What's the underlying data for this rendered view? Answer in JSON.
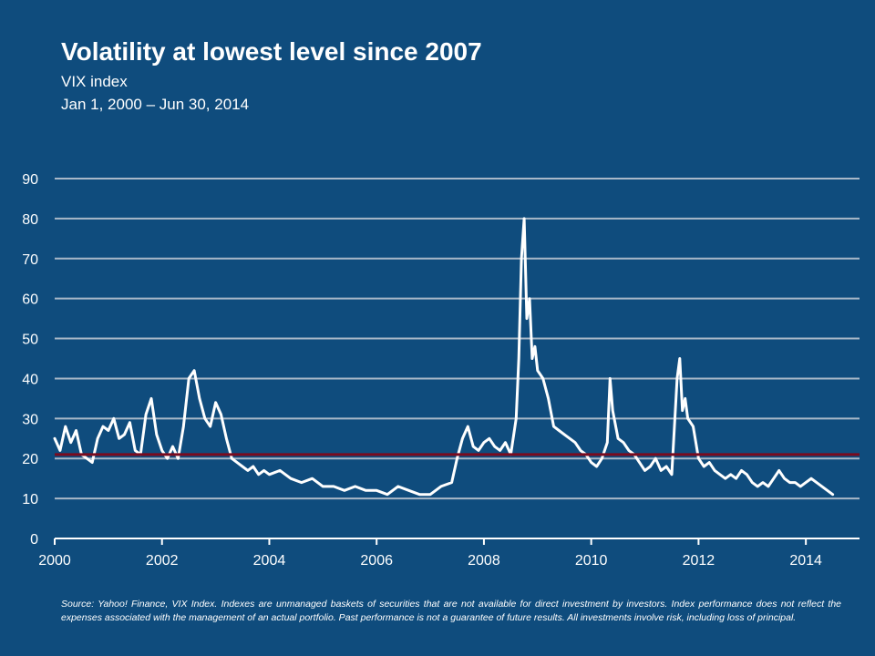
{
  "title": "Volatility at lowest level since 2007",
  "subtitle": "VIX index",
  "date_range": "Jan 1, 2000 – Jun 30, 2014",
  "footnote": "Source: Yahoo! Finance, VIX Index. Indexes are unmanaged baskets of securities that are not available for direct investment by investors. Index performance does not reflect the expenses associated with the management of an actual portfolio. Past performance is not a guarantee of future results. All investments involve risk, including loss of principal.",
  "colors": {
    "background": "#0f4c7d",
    "line": "#ffffff",
    "average_line": "#7a0b1f",
    "grid": "#a9b8c8"
  },
  "chart_data": {
    "type": "line",
    "title": "Volatility at lowest level since 2007",
    "xlabel": "",
    "ylabel": "",
    "xlim": [
      2000,
      2015
    ],
    "ylim": [
      0,
      90
    ],
    "x_ticks": [
      2000,
      2002,
      2004,
      2006,
      2008,
      2010,
      2012,
      2014
    ],
    "x_tick_labels": [
      "2000",
      "2002",
      "2004",
      "2006",
      "2008",
      "2010",
      "2012",
      "2014"
    ],
    "y_ticks": [
      0,
      10,
      20,
      30,
      40,
      50,
      60,
      70,
      80,
      90
    ],
    "y_tick_labels": [
      "0",
      "10",
      "20",
      "30",
      "40",
      "50",
      "60",
      "70",
      "80",
      "90"
    ],
    "grid": "horizontal",
    "legend": "none",
    "series": [
      {
        "x": [
          2000.0,
          2000.1,
          2000.2,
          2000.3,
          2000.4,
          2000.5,
          2000.6,
          2000.7,
          2000.8,
          2000.9,
          2001.0,
          2001.1,
          2001.2,
          2001.3,
          2001.4,
          2001.5,
          2001.6,
          2001.7,
          2001.8,
          2001.9,
          2002.0,
          2002.1,
          2002.2,
          2002.3,
          2002.4,
          2002.5,
          2002.6,
          2002.7,
          2002.8,
          2002.9,
          2003.0,
          2003.1,
          2003.2,
          2003.3,
          2003.4,
          2003.5,
          2003.6,
          2003.7,
          2003.8,
          2003.9,
          2004.0,
          2004.2,
          2004.4,
          2004.6,
          2004.8,
          2005.0,
          2005.2,
          2005.4,
          2005.6,
          2005.8,
          2006.0,
          2006.2,
          2006.4,
          2006.6,
          2006.8,
          2007.0,
          2007.2,
          2007.4,
          2007.5,
          2007.6,
          2007.7,
          2007.8,
          2007.9,
          2008.0,
          2008.1,
          2008.2,
          2008.3,
          2008.4,
          2008.5,
          2008.6,
          2008.65,
          2008.7,
          2008.75,
          2008.8,
          2008.85,
          2008.9,
          2008.95,
          2009.0,
          2009.1,
          2009.2,
          2009.3,
          2009.4,
          2009.5,
          2009.6,
          2009.7,
          2009.8,
          2009.9,
          2010.0,
          2010.1,
          2010.2,
          2010.3,
          2010.35,
          2010.4,
          2010.5,
          2010.6,
          2010.7,
          2010.8,
          2010.9,
          2011.0,
          2011.1,
          2011.2,
          2011.3,
          2011.4,
          2011.5,
          2011.6,
          2011.65,
          2011.7,
          2011.75,
          2011.8,
          2011.9,
          2012.0,
          2012.1,
          2012.2,
          2012.3,
          2012.4,
          2012.5,
          2012.6,
          2012.7,
          2012.8,
          2012.9,
          2013.0,
          2013.1,
          2013.2,
          2013.3,
          2013.4,
          2013.5,
          2013.6,
          2013.7,
          2013.8,
          2013.9,
          2014.0,
          2014.1,
          2014.2,
          2014.3,
          2014.4,
          2014.5
        ],
        "values": [
          25,
          22,
          28,
          24,
          27,
          21,
          20,
          19,
          25,
          28,
          27,
          30,
          25,
          26,
          29,
          22,
          21,
          31,
          35,
          26,
          22,
          20,
          23,
          20,
          28,
          40,
          42,
          35,
          30,
          28,
          34,
          31,
          25,
          20,
          19,
          18,
          17,
          18,
          16,
          17,
          16,
          17,
          15,
          14,
          15,
          13,
          13,
          12,
          13,
          12,
          12,
          11,
          13,
          12,
          11,
          11,
          13,
          14,
          20,
          25,
          28,
          23,
          22,
          24,
          25,
          23,
          22,
          24,
          21,
          30,
          45,
          70,
          80,
          55,
          60,
          45,
          48,
          42,
          40,
          35,
          28,
          27,
          26,
          25,
          24,
          22,
          21,
          19,
          18,
          20,
          24,
          40,
          32,
          25,
          24,
          22,
          21,
          19,
          17,
          18,
          20,
          17,
          18,
          16,
          40,
          45,
          32,
          35,
          30,
          28,
          20,
          18,
          19,
          17,
          16,
          15,
          16,
          15,
          17,
          16,
          14,
          13,
          14,
          13,
          15,
          17,
          15,
          14,
          14,
          13,
          14,
          15,
          14,
          13,
          12,
          11
        ]
      }
    ],
    "average_line": 21
  }
}
